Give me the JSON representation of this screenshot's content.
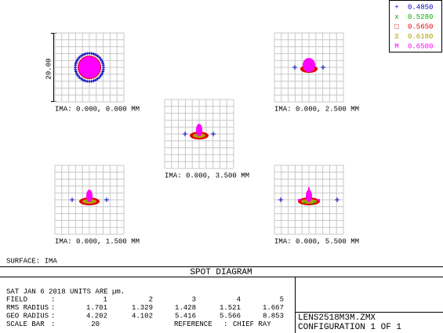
{
  "legend": [
    {
      "symbol": "+",
      "label": "0.4850",
      "color": "#0000c0"
    },
    {
      "symbol": "x",
      "label": "0.5280",
      "color": "#00b000"
    },
    {
      "symbol": "□",
      "label": "0.5650",
      "color": "#e00000"
    },
    {
      "symbol": "⧖",
      "label": "0.6180",
      "color": "#b0a000"
    },
    {
      "symbol": "M",
      "label": "0.6500",
      "color": "#ff00ff"
    }
  ],
  "scale_label": "20.00",
  "fields": [
    {
      "label": "IMA: 0.000, 0.000 MM"
    },
    {
      "label": "IMA: 0.000, 2.500 MM"
    },
    {
      "label": "IMA: 0.000, 3.500 MM"
    },
    {
      "label": "IMA: 0.000, 1.500 MM"
    },
    {
      "label": "IMA: 0.000, 5.500 MM"
    }
  ],
  "surface": "SURFACE: IMA",
  "title": "SPOT DIAGRAM",
  "info": {
    "date_line": "SAT JAN 6 2018   UNITS ARE µm.",
    "rows": [
      {
        "label": "FIELD",
        "sep": ":",
        "values": [
          "1",
          "2",
          "3",
          "4",
          "5"
        ]
      },
      {
        "label": "RMS RADIUS",
        "sep": ":",
        "values": [
          "1.701",
          "1.329",
          "1.428",
          "1.521",
          "1.667"
        ]
      },
      {
        "label": "GEO RADIUS",
        "sep": ":",
        "values": [
          "4.202",
          "4.102",
          "5.416",
          "5.566",
          "8.853"
        ]
      }
    ],
    "scale_row": {
      "label": "SCALE BAR",
      "sep": ":",
      "value": "20",
      "ref_label": "REFERENCE",
      "ref_sep": ":",
      "ref_value": "CHIEF RAY"
    }
  },
  "file": "LENS2518M3M.ZMX",
  "configuration": "CONFIGURATION 1 OF 1"
}
